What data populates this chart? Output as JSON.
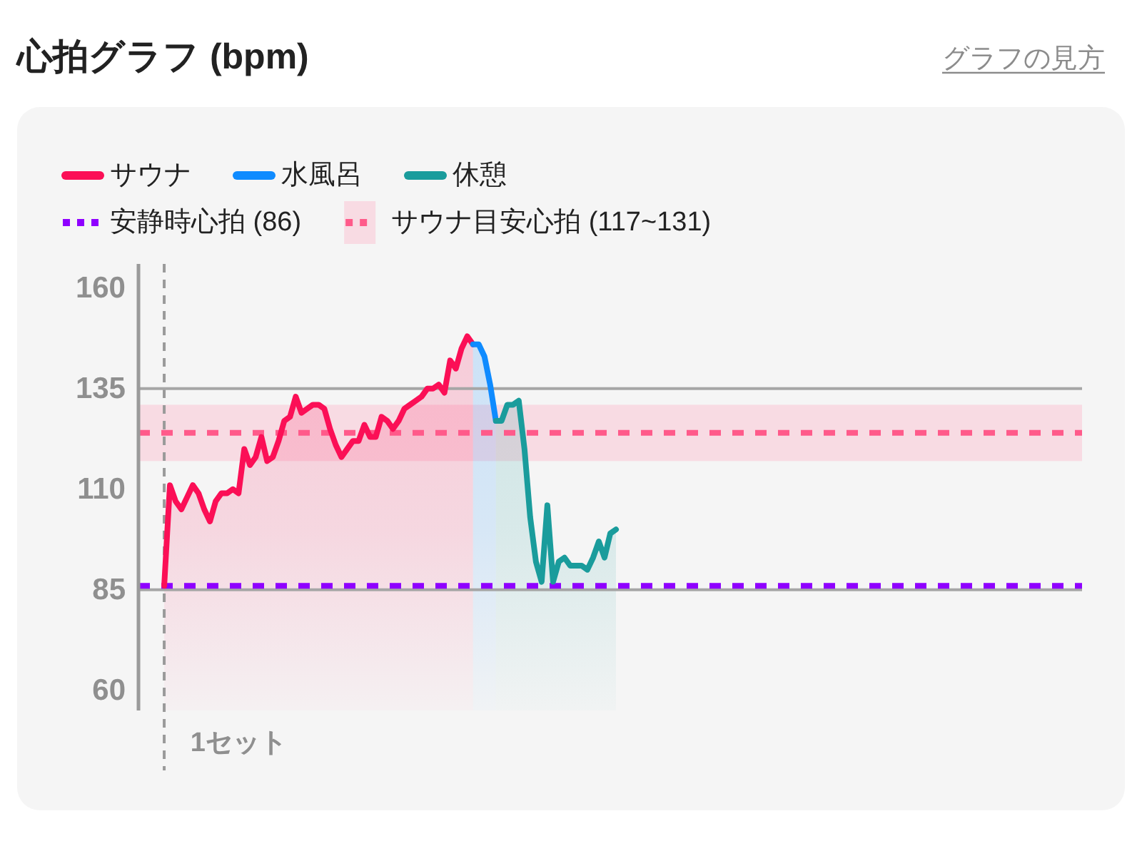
{
  "chart_data": {
    "type": "area",
    "title": "心拍グラフ (bpm)",
    "annotations": [
      "グラフの見方"
    ],
    "categories": [
      null,
      null,
      null,
      null,
      null,
      null,
      null,
      null,
      null,
      null,
      null,
      null,
      null,
      null,
      null,
      null,
      null,
      "1セット",
      null,
      null,
      null,
      null,
      null,
      null,
      null,
      null,
      null,
      null,
      null,
      null,
      null,
      null,
      null,
      null,
      null,
      null,
      null,
      null,
      null,
      null,
      null,
      null,
      null,
      null,
      null,
      null,
      null,
      null,
      null,
      null,
      null,
      null,
      null,
      null,
      null,
      null,
      null,
      null,
      null,
      null,
      null,
      null,
      null,
      null,
      null,
      null,
      null,
      null,
      null,
      null,
      null,
      null,
      null,
      null,
      null,
      null,
      null,
      null,
      null,
      null,
      null,
      null,
      null,
      null,
      null,
      null,
      null,
      null,
      null,
      null,
      null,
      null,
      null,
      null,
      null,
      null,
      null,
      null,
      null,
      null,
      null,
      null,
      null,
      null,
      null,
      null,
      null,
      null,
      null,
      null,
      null,
      null,
      null,
      null,
      null,
      null,
      null,
      null,
      null,
      null,
      null,
      null,
      null,
      null,
      null,
      null,
      null,
      null,
      null,
      null,
      null,
      null,
      null,
      null,
      null,
      null,
      null,
      null,
      null,
      null,
      null,
      null,
      null,
      null,
      null,
      null,
      null,
      null,
      null,
      null,
      null,
      null,
      null,
      null,
      null,
      null,
      null,
      null,
      null,
      null,
      null,
      null,
      null,
      null,
      null
    ],
    "series": [
      {
        "name": "サウナ",
        "color": "#fb0f56",
        "values": [
          null,
          null,
          null,
          null,
          86,
          111,
          107,
          105,
          108,
          111,
          109,
          105,
          102,
          107,
          109,
          109,
          110,
          109,
          120,
          116,
          118,
          123,
          117,
          118,
          122,
          127,
          128,
          133,
          129,
          130,
          131,
          131,
          130,
          125,
          121,
          118,
          120,
          122,
          122,
          126,
          123,
          123,
          128,
          127,
          125,
          127,
          130,
          131,
          132,
          133,
          135,
          135,
          136,
          134,
          142,
          140,
          145,
          148,
          146,
          null,
          null,
          null,
          null,
          null,
          null,
          null,
          null,
          null,
          null,
          null,
          null,
          null,
          null,
          null,
          null,
          null,
          null,
          null,
          null,
          null,
          null,
          null,
          null,
          null,
          null,
          null,
          null,
          null,
          null,
          null,
          null,
          null,
          null,
          null,
          null,
          null,
          null,
          null,
          null,
          null,
          null,
          null,
          null,
          null,
          null,
          null,
          null,
          null,
          null,
          null,
          null,
          null,
          null,
          null,
          null,
          null,
          null,
          null,
          null,
          null,
          null,
          null,
          null,
          null,
          null,
          null,
          null,
          null,
          null,
          null,
          null,
          null,
          null,
          null,
          null,
          null,
          null,
          null,
          null,
          null,
          null,
          null,
          null,
          null,
          null,
          null,
          null,
          null,
          null,
          null,
          null,
          null,
          null,
          null,
          null,
          null,
          null,
          null,
          null,
          null,
          null,
          null,
          null,
          null,
          null
        ]
      },
      {
        "name": "水風呂",
        "color": "#0f8bff",
        "values": [
          null,
          null,
          null,
          null,
          null,
          null,
          null,
          null,
          null,
          null,
          null,
          null,
          null,
          null,
          null,
          null,
          null,
          null,
          null,
          null,
          null,
          null,
          null,
          null,
          null,
          null,
          null,
          null,
          null,
          null,
          null,
          null,
          null,
          null,
          null,
          null,
          null,
          null,
          null,
          null,
          null,
          null,
          null,
          null,
          null,
          null,
          null,
          null,
          null,
          null,
          null,
          null,
          null,
          null,
          null,
          null,
          null,
          null,
          146,
          146,
          143,
          136,
          127,
          null,
          null,
          null,
          null,
          null,
          null,
          null,
          null,
          null,
          null,
          null,
          null,
          null,
          null,
          null,
          null,
          null,
          null,
          null,
          null,
          null,
          null,
          null,
          null,
          null,
          null,
          null,
          null,
          null,
          null,
          null,
          null,
          null,
          null,
          null,
          null,
          null,
          null,
          null,
          null,
          null,
          null,
          null,
          null,
          null,
          null,
          null,
          null,
          null,
          null,
          null,
          null,
          null,
          null,
          null,
          null,
          null,
          null,
          null,
          null,
          null,
          null,
          null,
          null,
          null,
          null,
          null,
          null,
          null,
          null,
          null,
          null,
          null,
          null,
          null,
          null,
          null,
          null,
          null,
          null,
          null,
          null,
          null,
          null,
          null,
          null,
          null,
          null,
          null,
          null,
          null,
          null,
          null,
          null,
          null,
          null,
          null,
          null,
          null,
          null,
          null,
          null
        ]
      },
      {
        "name": "休憩",
        "color": "#1a9c9c",
        "values": [
          null,
          null,
          null,
          null,
          null,
          null,
          null,
          null,
          null,
          null,
          null,
          null,
          null,
          null,
          null,
          null,
          null,
          null,
          null,
          null,
          null,
          null,
          null,
          null,
          null,
          null,
          null,
          null,
          null,
          null,
          null,
          null,
          null,
          null,
          null,
          null,
          null,
          null,
          null,
          null,
          null,
          null,
          null,
          null,
          null,
          null,
          null,
          null,
          null,
          null,
          null,
          null,
          null,
          null,
          null,
          null,
          null,
          null,
          null,
          null,
          null,
          null,
          127,
          127,
          131,
          131,
          132,
          120,
          103,
          92,
          87,
          106,
          87,
          92,
          93,
          91,
          91,
          91,
          90,
          93,
          97,
          93,
          99,
          100,
          null,
          null,
          null,
          null,
          null,
          null,
          null,
          null,
          null,
          null,
          null,
          null,
          null,
          null,
          null,
          null,
          null,
          null,
          null,
          null,
          null,
          null,
          null,
          null,
          null,
          null,
          null,
          null,
          null,
          null,
          null,
          null,
          null,
          null,
          null,
          null,
          null,
          null,
          null,
          null,
          null,
          null,
          null,
          null,
          null,
          null,
          null,
          null,
          null,
          null,
          null,
          null,
          null,
          null,
          null,
          null,
          null,
          null,
          null,
          null,
          null,
          null,
          null,
          null,
          null,
          null,
          null,
          null,
          null,
          null,
          null,
          null,
          null,
          null,
          null,
          null,
          null,
          null,
          null,
          null,
          null
        ]
      }
    ],
    "ylim": [
      55,
      166
    ],
    "yticks": [
      60,
      85,
      110,
      135,
      160
    ],
    "ref_lines": [
      {
        "axis": "y",
        "value": 135,
        "color": "#a6a6a6"
      },
      {
        "axis": "y",
        "value": 85,
        "color": "#a6a6a6"
      },
      {
        "axis": "y",
        "value": 124,
        "color": "#ff5a8a",
        "line_style": "dotted"
      },
      {
        "axis": "y",
        "value": 86,
        "label": "安静時心拍 (86)",
        "color": "#8f00ff",
        "line_style": "dotted"
      }
    ],
    "bands": [
      {
        "axis": "y",
        "from": 117,
        "to": 131,
        "label": "サウナ目安心拍 (117~131)",
        "color": "#f8dbe3"
      }
    ],
    "legend": "top left"
  }
}
